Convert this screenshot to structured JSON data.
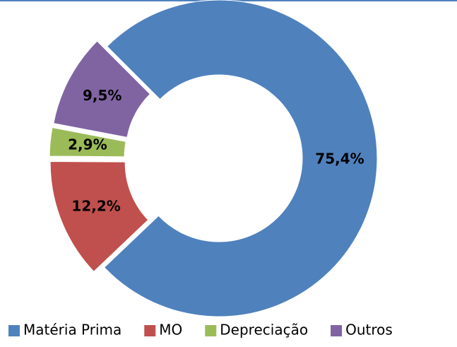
{
  "chart_data": {
    "type": "donut",
    "categories": [
      "Matéria Prima",
      "MO",
      "Depreciação",
      "Outros"
    ],
    "values": [
      75.4,
      12.2,
      2.9,
      9.5
    ],
    "value_labels": [
      "75,4%",
      "12,2%",
      "2,9%",
      "9,5%"
    ],
    "colors": [
      "#4f81bd",
      "#c0504d",
      "#9bbb59",
      "#8064a2"
    ],
    "legend": "bottom"
  }
}
